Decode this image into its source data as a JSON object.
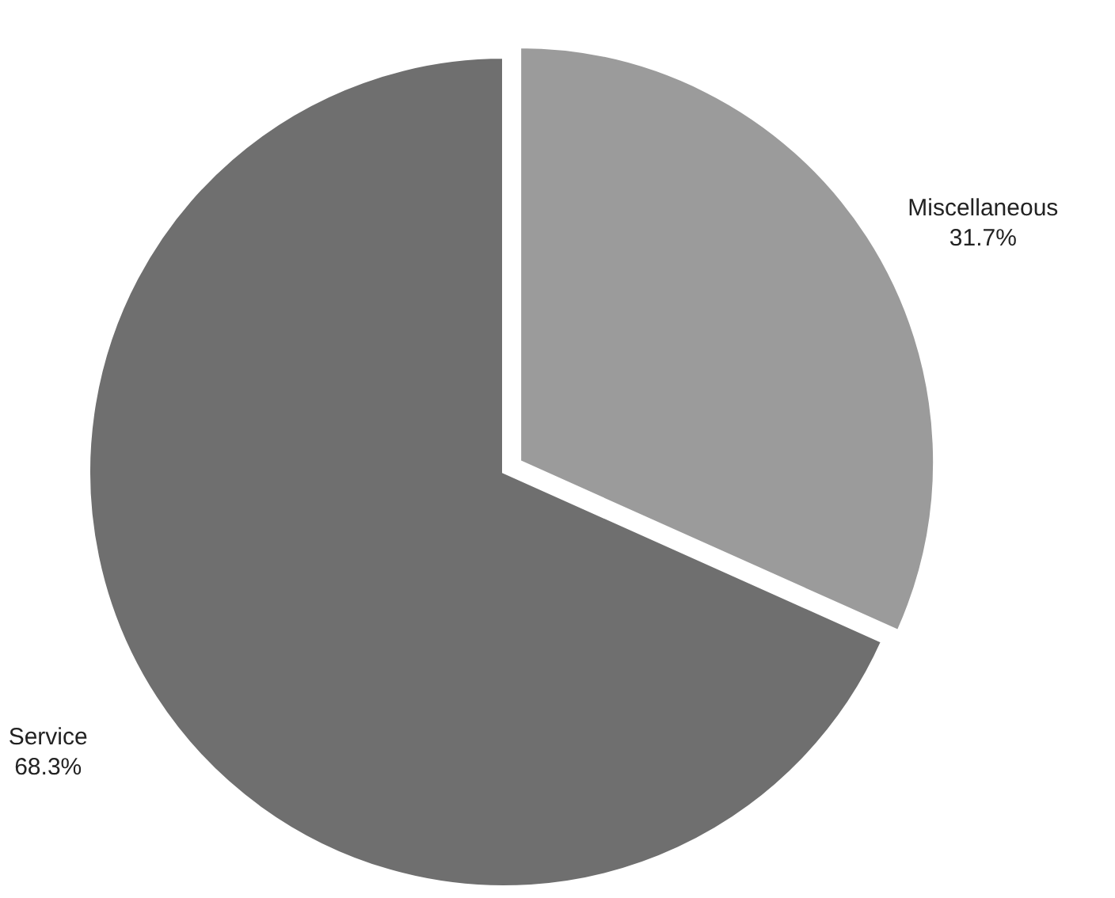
{
  "chart_data": {
    "type": "pie",
    "categories": [
      "Miscellaneous",
      "Service"
    ],
    "values": [
      31.7,
      68.3
    ],
    "colors": [
      "#9b9b9b",
      "#6f6f6f"
    ],
    "value_labels": [
      "31.7%",
      "68.3%"
    ]
  }
}
